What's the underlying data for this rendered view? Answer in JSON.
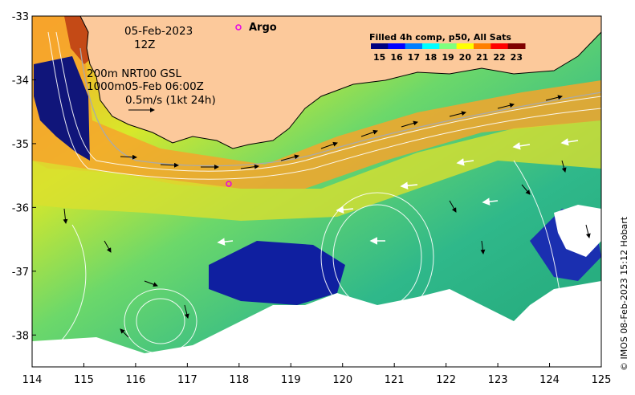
{
  "map": {
    "x_ticks": [
      "114",
      "115",
      "116",
      "117",
      "118",
      "119",
      "120",
      "121",
      "122",
      "123",
      "124",
      "125"
    ],
    "y_ticks": [
      "-33",
      "-34",
      "-35",
      "-36",
      "-37",
      "-38"
    ],
    "lon_range": [
      114,
      125
    ],
    "lat_range": [
      -38.5,
      -33
    ]
  },
  "annotations": {
    "date": "05-Feb-2023",
    "hour": "12Z",
    "line1": "200m  NRT00 GSL",
    "line2": "1000m05-Feb 06:00Z",
    "line3": "0.5m/s (1kt 24h)",
    "argo_label": "Argo"
  },
  "colorbar": {
    "title": "Filled 4h comp, p50, All Sats",
    "ticks": [
      "15",
      "16",
      "17",
      "18",
      "19",
      "20",
      "21",
      "22",
      "23"
    ],
    "colors": [
      "#00007f",
      "#0000ff",
      "#007fff",
      "#00ffff",
      "#7fff7f",
      "#ffff00",
      "#ff7f00",
      "#ff0000",
      "#7f0000"
    ]
  },
  "credit": "© IMOS 08-Feb-2023 15:12 Hobart",
  "colors": {
    "land": "#fcc99b",
    "argo": "#e600e6"
  }
}
